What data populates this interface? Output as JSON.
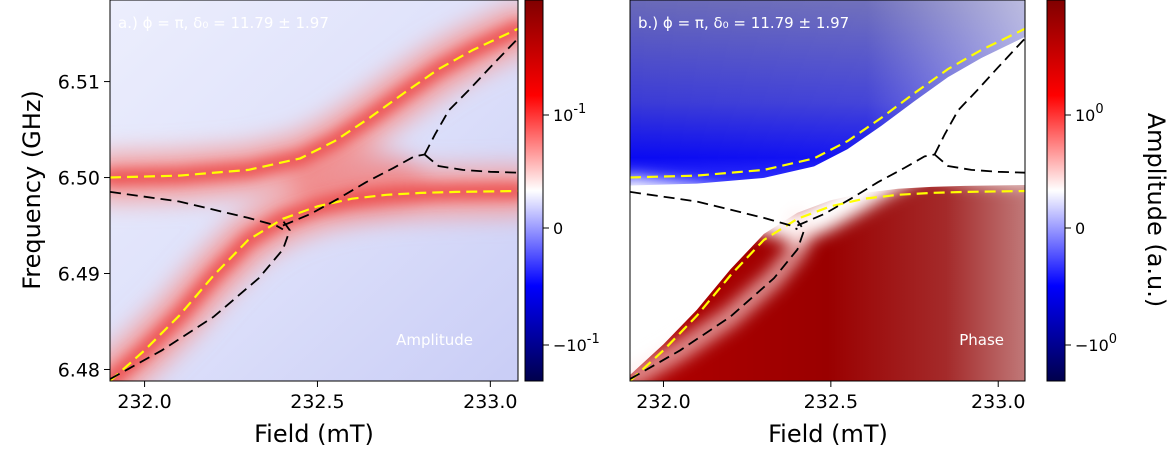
{
  "figure": {
    "ylabel": "Frequency (GHz)",
    "xlabel": "Field (mT)",
    "cbar_label": "Amplitude (a.u.)"
  },
  "colormap": {
    "name": "seismic",
    "low": "#00004c",
    "mid": "#ffffff",
    "high": "#800000"
  },
  "line_styles": {
    "model_color": "#ffff00",
    "fit_color": "#000000",
    "dash": "dashed"
  },
  "chart_data": [
    {
      "type": "heatmap",
      "panel": "a",
      "title": "a.) ϕ = π, δ₀ = 11.79 ± 1.97",
      "label": "Amplitude",
      "xlabel": "Field (mT)",
      "ylabel": "Frequency (GHz)",
      "xlim": [
        231.9,
        233.08
      ],
      "ylim": [
        6.4788,
        6.5185
      ],
      "xticks": [
        {
          "v": 232.0,
          "t": "232.0"
        },
        {
          "v": 232.5,
          "t": "232.5"
        },
        {
          "v": 233.0,
          "t": "233.0"
        }
      ],
      "yticks": [
        {
          "v": 6.48,
          "t": "6.48"
        },
        {
          "v": 6.49,
          "t": "6.49"
        },
        {
          "v": 6.5,
          "t": "6.50"
        },
        {
          "v": 6.51,
          "t": "6.51"
        }
      ],
      "colorbar_ticks": [
        {
          "v": 0.1,
          "t": "10^-1"
        },
        {
          "v": 0,
          "t": "0"
        },
        {
          "v": -0.1,
          "t": "−10^-1"
        }
      ],
      "crossing": {
        "field": 232.62,
        "frequency": 6.4995
      },
      "model_curves": [
        {
          "x": [
            231.9,
            232.1,
            232.3,
            232.45,
            232.55,
            232.65,
            232.75,
            232.85,
            232.95,
            233.08
          ],
          "y": [
            6.5,
            6.5002,
            6.5008,
            6.502,
            6.5038,
            6.5062,
            6.5088,
            6.5113,
            6.5133,
            6.5155
          ]
        },
        {
          "x": [
            231.9,
            232.0,
            232.1,
            232.2,
            232.3,
            232.4,
            232.5,
            232.6,
            232.7,
            232.8,
            232.9,
            233.08
          ],
          "y": [
            6.4788,
            6.482,
            6.4856,
            6.4898,
            6.4935,
            6.4957,
            6.497,
            6.4978,
            6.4982,
            6.4984,
            6.4985,
            6.4986
          ]
        }
      ],
      "fit_curves": [
        {
          "x": [
            231.9,
            232.1,
            232.3,
            232.38,
            232.4
          ],
          "y": [
            6.4985,
            6.4975,
            6.4958,
            6.495,
            6.4946
          ]
        },
        {
          "x": [
            232.4,
            232.48,
            232.56,
            232.64,
            232.72,
            232.78,
            232.81
          ],
          "y": [
            6.495,
            6.4962,
            6.4978,
            6.4995,
            6.501,
            6.5022,
            6.5024
          ]
        },
        {
          "x": [
            231.9,
            232.05,
            232.2,
            232.33,
            232.4,
            232.42,
            232.4
          ],
          "y": [
            6.479,
            6.482,
            6.4855,
            6.4895,
            6.4925,
            6.4945,
            6.4955
          ]
        },
        {
          "x": [
            232.81,
            232.84,
            232.88,
            232.94,
            233.0,
            233.08
          ],
          "y": [
            6.5024,
            6.5045,
            6.507,
            6.5092,
            6.5115,
            6.5145
          ]
        },
        {
          "x": [
            232.81,
            232.85,
            232.92,
            233.0,
            233.08
          ],
          "y": [
            6.5024,
            6.5012,
            6.5008,
            6.5006,
            6.5005
          ]
        }
      ]
    },
    {
      "type": "heatmap",
      "panel": "b",
      "title": "b.) ϕ = π, δ₀ = 11.79 ± 1.97",
      "label": "Phase",
      "xlabel": "Field (mT)",
      "xlim": [
        231.9,
        233.08
      ],
      "ylim": [
        6.4788,
        6.5185
      ],
      "xticks": [
        {
          "v": 232.0,
          "t": "232.0"
        },
        {
          "v": 232.5,
          "t": "232.5"
        },
        {
          "v": 233.0,
          "t": "233.0"
        }
      ],
      "colorbar_ticks": [
        {
          "v": 1,
          "t": "10^0"
        },
        {
          "v": 0,
          "t": "0"
        },
        {
          "v": -1,
          "t": "−10^0"
        }
      ],
      "crossing": {
        "field": 232.62,
        "frequency": 6.4995
      },
      "model_curves": [
        {
          "x": [
            231.9,
            232.1,
            232.3,
            232.45,
            232.55,
            232.65,
            232.75,
            232.85,
            232.95,
            233.08
          ],
          "y": [
            6.5,
            6.5002,
            6.5008,
            6.502,
            6.5038,
            6.5062,
            6.5088,
            6.5113,
            6.5133,
            6.5155
          ]
        },
        {
          "x": [
            231.9,
            232.0,
            232.1,
            232.2,
            232.3,
            232.4,
            232.5,
            232.6,
            232.7,
            232.8,
            232.9,
            233.08
          ],
          "y": [
            6.4788,
            6.482,
            6.4856,
            6.4898,
            6.4935,
            6.4957,
            6.497,
            6.4978,
            6.4982,
            6.4984,
            6.4985,
            6.4986
          ]
        }
      ],
      "fit_curves": [
        {
          "x": [
            231.9,
            232.1,
            232.3,
            232.38,
            232.4
          ],
          "y": [
            6.4985,
            6.4975,
            6.4958,
            6.495,
            6.4946
          ]
        },
        {
          "x": [
            232.4,
            232.48,
            232.56,
            232.64,
            232.72,
            232.78,
            232.81
          ],
          "y": [
            6.495,
            6.4962,
            6.4978,
            6.4995,
            6.501,
            6.5022,
            6.5024
          ]
        },
        {
          "x": [
            231.9,
            232.05,
            232.2,
            232.33,
            232.4,
            232.42,
            232.4
          ],
          "y": [
            6.479,
            6.482,
            6.4855,
            6.4895,
            6.4925,
            6.4945,
            6.4955
          ]
        },
        {
          "x": [
            232.81,
            232.84,
            232.88,
            232.94,
            233.0,
            233.08
          ],
          "y": [
            6.5024,
            6.5045,
            6.507,
            6.5092,
            6.5115,
            6.5145
          ]
        },
        {
          "x": [
            232.81,
            232.85,
            232.92,
            233.0,
            233.08
          ],
          "y": [
            6.5024,
            6.5012,
            6.5008,
            6.5006,
            6.5005
          ]
        }
      ]
    }
  ]
}
